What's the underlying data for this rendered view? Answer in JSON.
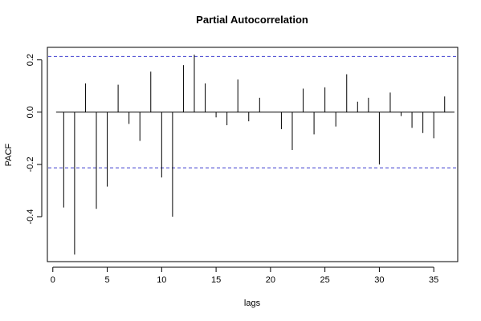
{
  "chart_data": {
    "type": "bar",
    "style": "pacf-spikes",
    "title": "Partial Autocorrelation",
    "xlabel": "lags",
    "ylabel": "PACF",
    "xlim": [
      -0.5,
      37.2
    ],
    "ylim": [
      -0.572,
      0.248
    ],
    "x_ticks": [
      0,
      5,
      10,
      15,
      20,
      25,
      30,
      35
    ],
    "x_tick_labels": [
      "0",
      "5",
      "10",
      "15",
      "20",
      "25",
      "30",
      "35"
    ],
    "y_ticks": [
      -0.4,
      -0.2,
      0.0,
      0.2
    ],
    "y_tick_labels": [
      "-0.4",
      "-0.2",
      "0.0",
      "0.2"
    ],
    "confidence_bound": 0.213,
    "confidence_color": "#4040d0",
    "lags": [
      1,
      2,
      3,
      4,
      5,
      6,
      7,
      8,
      9,
      10,
      11,
      12,
      13,
      14,
      15,
      16,
      17,
      18,
      19,
      20,
      21,
      22,
      23,
      24,
      25,
      26,
      27,
      28,
      29,
      30,
      31,
      32,
      33,
      34,
      35,
      36
    ],
    "values": [
      -0.365,
      -0.545,
      0.11,
      -0.37,
      -0.285,
      0.105,
      -0.045,
      -0.11,
      0.155,
      -0.25,
      -0.4,
      0.18,
      0.22,
      0.11,
      -0.02,
      -0.05,
      0.125,
      -0.035,
      0.055,
      0.0,
      -0.065,
      -0.145,
      0.09,
      -0.085,
      0.095,
      -0.055,
      0.145,
      0.04,
      0.055,
      -0.2,
      0.075,
      -0.015,
      -0.06,
      -0.08,
      -0.1,
      0.06
    ],
    "grid": false,
    "legend": "none"
  }
}
